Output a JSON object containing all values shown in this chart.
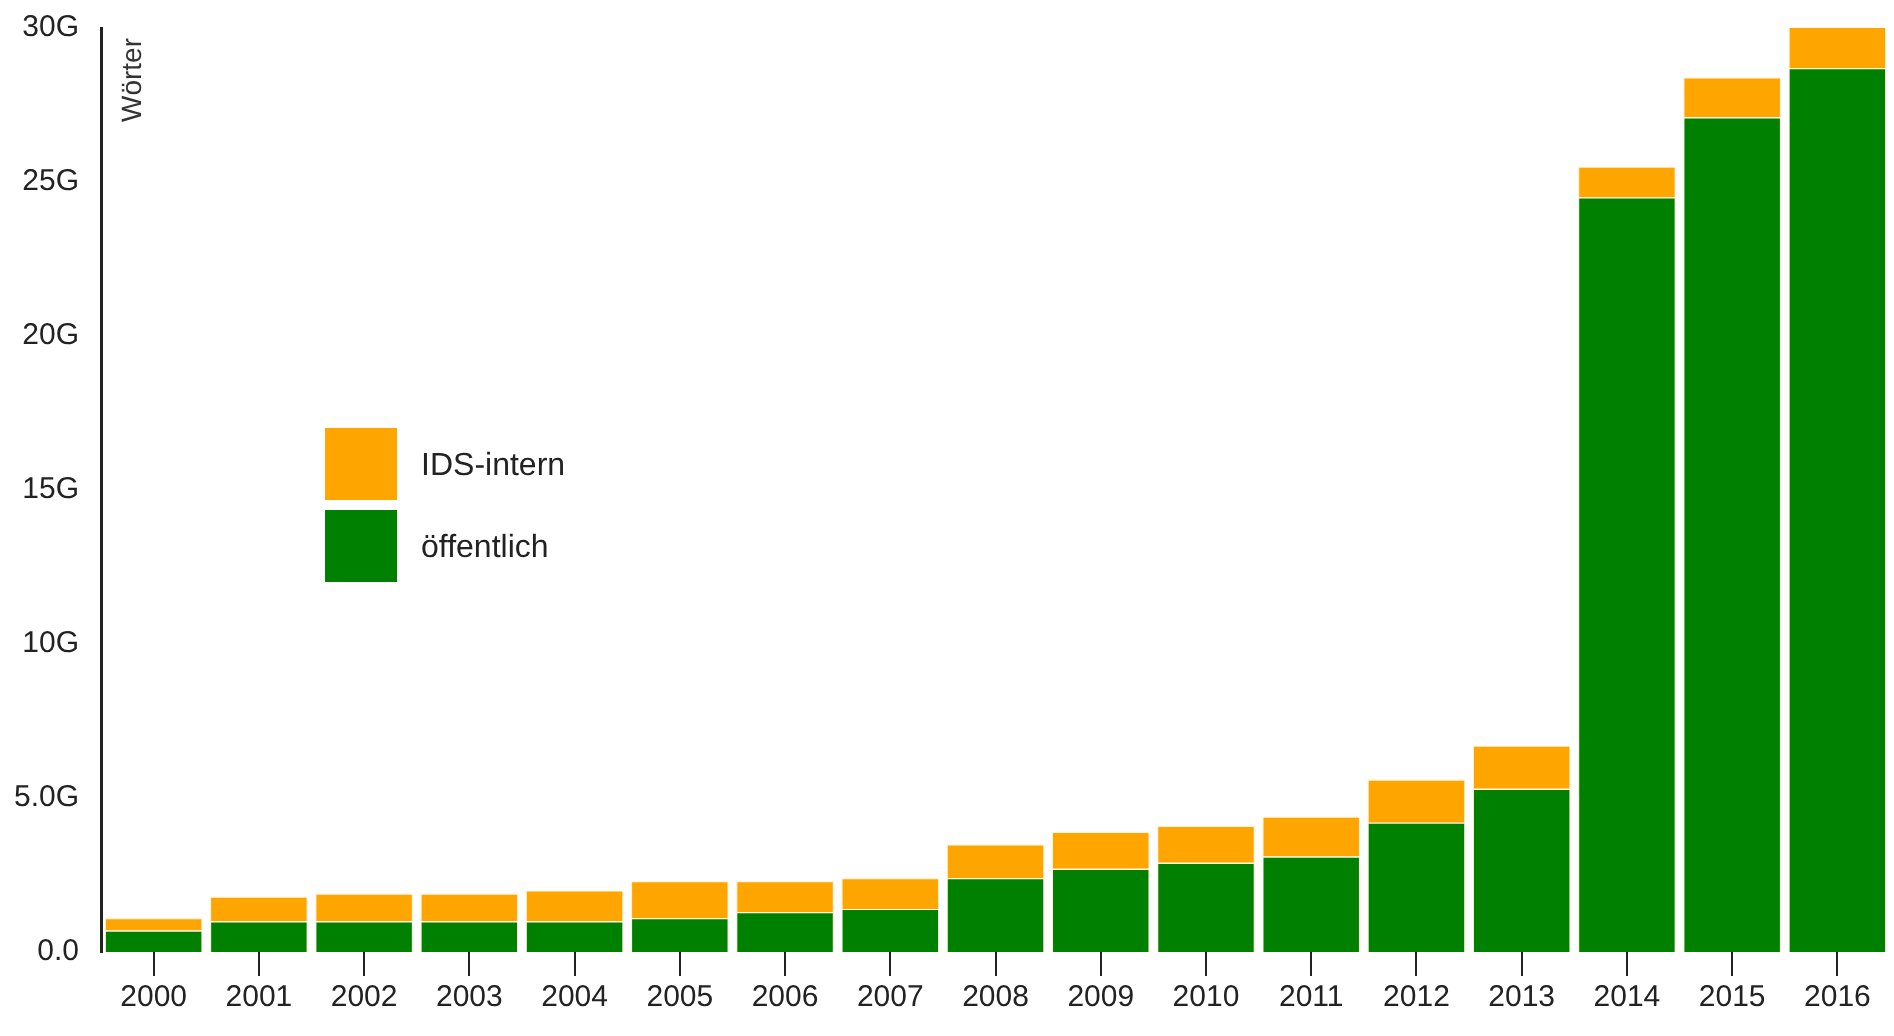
{
  "chart_data": {
    "type": "bar",
    "stacked": true,
    "ylabel": "Wörter",
    "legend": "left",
    "grid": false,
    "categories": [
      "2000",
      "2001",
      "2002",
      "2003",
      "2004",
      "2005",
      "2006",
      "2007",
      "2008",
      "2009",
      "2010",
      "2011",
      "2012",
      "2013",
      "2014",
      "2015",
      "2016"
    ],
    "series": [
      {
        "name": "öffentlich",
        "color": "#008000",
        "values": [
          0.7,
          1.0,
          1.0,
          1.0,
          1.0,
          1.1,
          1.3,
          1.4,
          2.4,
          2.7,
          2.9,
          3.1,
          4.2,
          5.3,
          24.5,
          27.1,
          28.7
        ]
      },
      {
        "name": "IDS-intern",
        "color": "#ffa500",
        "values": [
          0.4,
          0.8,
          0.9,
          0.9,
          1.0,
          1.2,
          1.0,
          1.0,
          1.1,
          1.2,
          1.2,
          1.3,
          1.4,
          1.4,
          1.0,
          1.3,
          1.4
        ]
      }
    ],
    "ylim": [
      0,
      30
    ],
    "yticks": [
      {
        "value": 0,
        "label": "0.0"
      },
      {
        "value": 5,
        "label": "5.0G"
      },
      {
        "value": 10,
        "label": "10G"
      },
      {
        "value": 15,
        "label": "15G"
      },
      {
        "value": 20,
        "label": "20G"
      },
      {
        "value": 25,
        "label": "25G"
      },
      {
        "value": 30,
        "label": "30G"
      }
    ]
  }
}
